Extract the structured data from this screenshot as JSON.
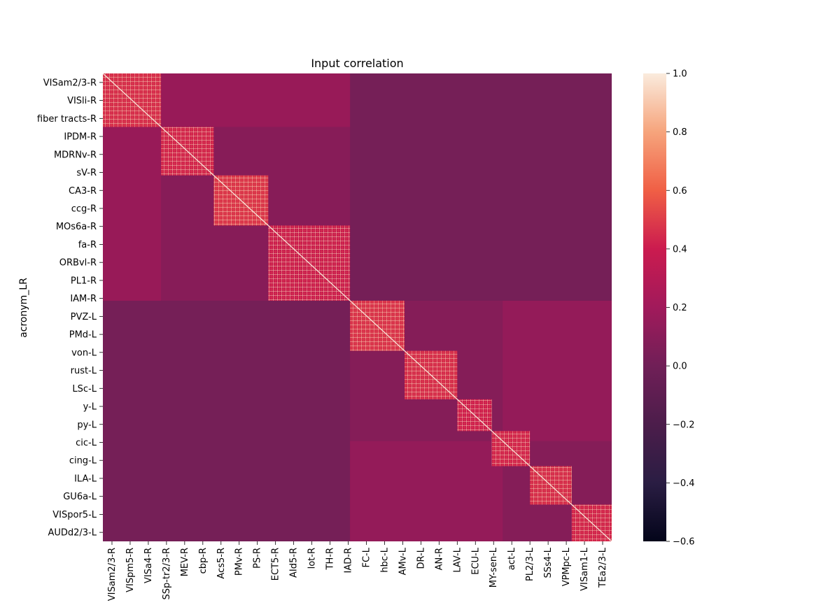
{
  "chart_data": {
    "type": "heatmap",
    "title": "Input correlation",
    "xlabel": "",
    "ylabel": "acronym_LR",
    "x_tick_labels": [
      "VISam2/3-R",
      "VISpm5-R",
      "VISa4-R",
      "SSp-tr2/3-R",
      "MEV-R",
      "cbp-R",
      "Acs5-R",
      "PMv-R",
      "PS-R",
      "ECT5-R",
      "AId5-R",
      "lot-R",
      "TH-R",
      "IAD-R",
      "FC-L",
      "hbc-L",
      "AMv-L",
      "DR-L",
      "AN-R",
      "LAV-L",
      "ECU-L",
      "MY-sen-L",
      "act-L",
      "PL2/3-L",
      "SSs4-L",
      "VPMpc-L",
      "VISam1-L",
      "TEa2/3-L"
    ],
    "y_tick_labels": [
      "VISam2/3-R",
      "VISli-R",
      "fiber tracts-R",
      "IPDM-R",
      "MDRNv-R",
      "sV-R",
      "CA3-R",
      "ccg-R",
      "MOs6a-R",
      "fa-R",
      "ORBvl-R",
      "PL1-R",
      "IAM-R",
      "PVZ-L",
      "PMd-L",
      "von-L",
      "rust-L",
      "LSc-L",
      "y-L",
      "py-L",
      "cic-L",
      "cing-L",
      "ILA-L",
      "GU6a-L",
      "VISpor5-L",
      "AUDd2/3-L"
    ],
    "colorbar": {
      "min": -0.6,
      "max": 1.0,
      "ticks": [
        1.0,
        0.8,
        0.6,
        0.4,
        0.2,
        0.0,
        -0.2,
        -0.4,
        -0.6
      ],
      "tick_labels": [
        "1.0",
        "0.8",
        "0.6",
        "0.4",
        "0.2",
        "0.0",
        "−0.2",
        "−0.4",
        "−0.6"
      ],
      "colormap": "rocket"
    },
    "background_value": 0.02,
    "blocks": [
      {
        "start": 0,
        "end": 3.2,
        "value": 0.45
      },
      {
        "start": 3.2,
        "end": 6.1,
        "value": 0.42
      },
      {
        "start": 6.1,
        "end": 9.1,
        "value": 0.48
      },
      {
        "start": 9.1,
        "end": 13.6,
        "value": 0.38
      },
      {
        "start": 13.6,
        "end": 16.6,
        "value": 0.47
      },
      {
        "start": 16.6,
        "end": 19.5,
        "value": 0.45
      },
      {
        "start": 19.5,
        "end": 21.4,
        "value": 0.4
      },
      {
        "start": 21.4,
        "end": 23.5,
        "value": 0.42
      },
      {
        "start": 23.5,
        "end": 25.8,
        "value": 0.45
      },
      {
        "start": 25.8,
        "end": 28,
        "value": 0.42
      }
    ],
    "off_diagonal_blocks": [
      {
        "rows": [
          0,
          13.6
        ],
        "cols": [
          0,
          13.6
        ],
        "value": 0.12
      },
      {
        "rows": [
          13.6,
          28
        ],
        "cols": [
          13.6,
          28
        ],
        "value": 0.1
      },
      {
        "rows": [
          0,
          3.2
        ],
        "cols": [
          3.2,
          13.6
        ],
        "value": 0.22
      },
      {
        "rows": [
          13.6,
          22
        ],
        "cols": [
          22,
          28
        ],
        "value": 0.2
      }
    ],
    "matrix_range": [
      0,
      28
    ]
  }
}
